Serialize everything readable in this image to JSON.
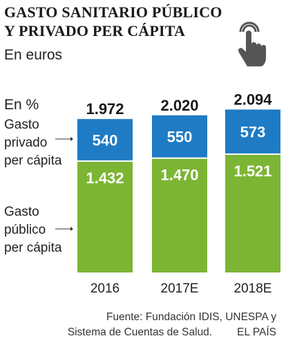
{
  "title": "GASTO SANITARIO PÚBLICO Y PRIVADO PER CÁPITA",
  "subtitle": "En euros",
  "unit_label": "En %",
  "icon": "pointing-hand-touch-icon",
  "colors": {
    "privado": "#1e7bc4",
    "publico": "#7cb534",
    "label_text": "#ffffff",
    "total_text": "#1a1a1a"
  },
  "source": {
    "line1": "Fuente: Fundación IDIS, UNESPA y",
    "line2a": "Sistema de Cuentas de Salud.",
    "line2b": "EL PAÍS"
  },
  "chart_data": {
    "type": "bar",
    "stacked": true,
    "categories": [
      "2016",
      "2017E",
      "2018E"
    ],
    "series": [
      {
        "name": "Gasto público per cápita",
        "values": [
          "1.432",
          "1.470",
          "1.521"
        ],
        "numeric": [
          1432,
          1470,
          1521
        ],
        "color": "#7cb534"
      },
      {
        "name": "Gasto privado per cápita",
        "values": [
          "540",
          "550",
          "573"
        ],
        "numeric": [
          540,
          550,
          573
        ],
        "color": "#1e7bc4"
      }
    ],
    "totals": [
      "1.972",
      "2.020",
      "2.094"
    ],
    "legend_labels": {
      "privado": "Gasto\nprivado\nper cápita",
      "publico": "Gasto\npúblico\nper cápita"
    }
  }
}
